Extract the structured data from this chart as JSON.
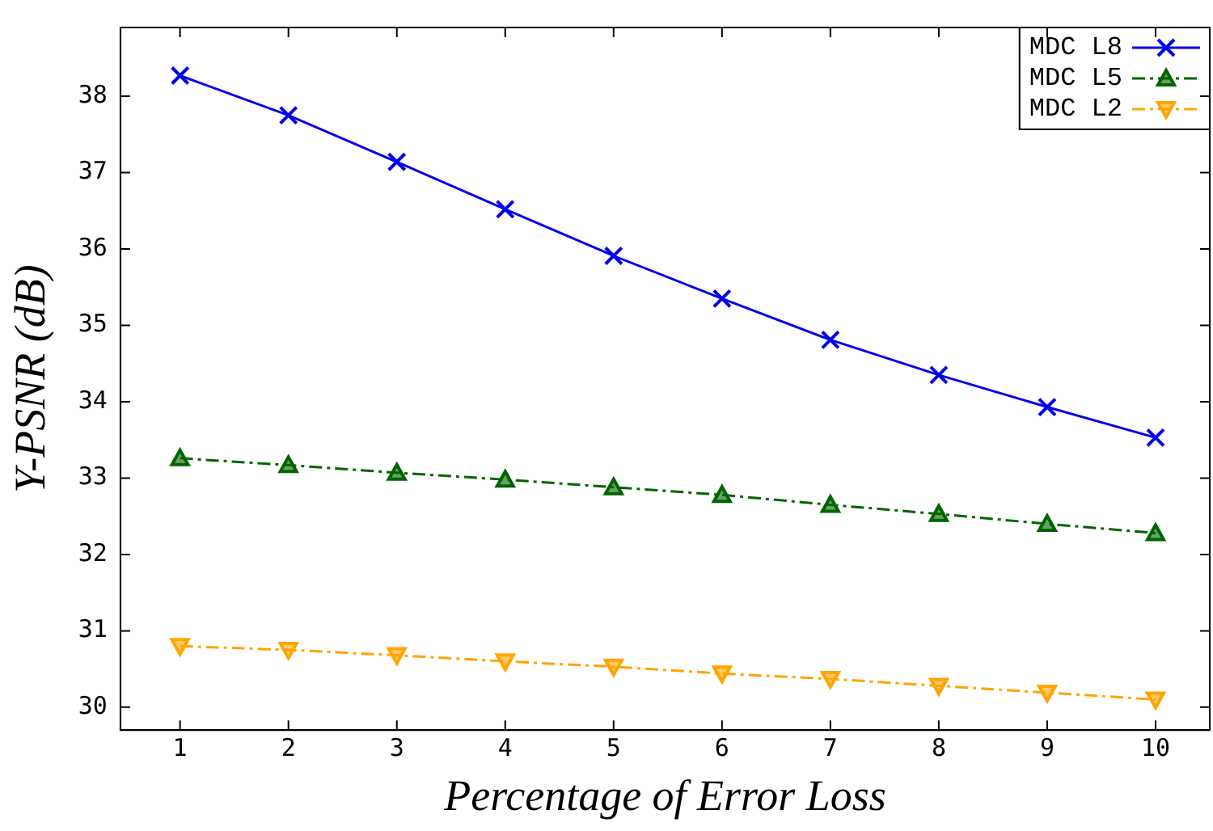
{
  "chart_data": {
    "type": "line",
    "xlabel": "Percentage of Error Loss",
    "ylabel": "Y-PSNR (dB)",
    "x": [
      1,
      2,
      3,
      4,
      5,
      6,
      7,
      8,
      9,
      10
    ],
    "xlim": [
      0.45,
      10.5
    ],
    "xticks": [
      1,
      2,
      3,
      4,
      5,
      6,
      7,
      8,
      9,
      10
    ],
    "ylim": [
      29.7,
      38.9
    ],
    "yticks": [
      30,
      31,
      32,
      33,
      34,
      35,
      36,
      37,
      38
    ],
    "grid": false,
    "legend": "top right",
    "series": [
      {
        "name": "MDC L8",
        "color": "#0000ee",
        "marker": "cross",
        "line_style": "solid",
        "values": [
          38.27,
          37.75,
          37.14,
          36.52,
          35.91,
          35.35,
          34.81,
          34.35,
          33.93,
          33.53
        ]
      },
      {
        "name": "MDC L5",
        "color": "#006400",
        "marker": "triangle",
        "line_style": "dashed",
        "values": [
          33.26,
          33.17,
          33.07,
          32.98,
          32.88,
          32.78,
          32.65,
          32.53,
          32.4,
          32.28
        ]
      },
      {
        "name": "MDC L2",
        "color": "#ffa500",
        "marker": "triangle_down",
        "line_style": "dashed",
        "values": [
          30.8,
          30.75,
          30.68,
          30.6,
          30.53,
          30.44,
          30.37,
          30.28,
          30.19,
          30.1
        ]
      }
    ]
  }
}
